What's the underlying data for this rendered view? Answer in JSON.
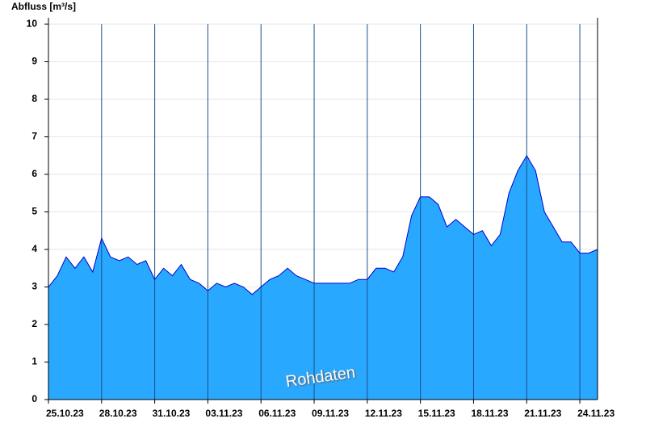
{
  "chart_data": {
    "type": "area",
    "y_label": "Abfluss [m³/s]",
    "annotation": "Rohdaten",
    "color": "#29a8ff",
    "line_color": "#0000cc",
    "grid": true,
    "x": [
      0,
      0.5,
      1,
      1.5,
      2,
      2.5,
      3,
      3.5,
      4,
      4.5,
      5,
      5.5,
      6,
      6.5,
      7,
      7.5,
      8,
      8.5,
      9,
      9.5,
      10,
      10.5,
      11,
      11.5,
      12,
      12.5,
      13,
      13.5,
      14,
      14.5,
      15,
      15.5,
      16,
      16.5,
      17,
      17.5,
      18,
      18.5,
      19,
      19.5,
      20,
      20.5,
      21,
      21.5,
      22,
      22.5,
      23,
      23.5,
      24,
      24.5,
      25,
      25.5,
      26,
      26.5,
      27,
      27.5,
      28,
      28.5,
      29,
      29.5,
      30,
      30.5,
      31
    ],
    "values": [
      3.0,
      3.3,
      3.8,
      3.5,
      3.8,
      3.4,
      4.3,
      3.8,
      3.7,
      3.8,
      3.6,
      3.7,
      3.2,
      3.5,
      3.3,
      3.6,
      3.2,
      3.1,
      2.9,
      3.1,
      3.0,
      3.1,
      3.0,
      2.8,
      3.0,
      3.2,
      3.3,
      3.5,
      3.3,
      3.2,
      3.1,
      3.1,
      3.1,
      3.1,
      3.1,
      3.2,
      3.2,
      3.5,
      3.5,
      3.4,
      3.8,
      4.9,
      5.4,
      5.4,
      5.2,
      4.6,
      4.8,
      4.6,
      4.4,
      4.5,
      4.1,
      4.4,
      5.5,
      6.1,
      6.5,
      6.1,
      5.0,
      4.6,
      4.2,
      4.2,
      3.9,
      3.9,
      4.0
    ],
    "xlim": [
      0,
      31
    ],
    "xticks": [
      {
        "value": 0,
        "label": "25.10.23"
      },
      {
        "value": 3,
        "label": "28.10.23"
      },
      {
        "value": 6,
        "label": "31.10.23"
      },
      {
        "value": 9,
        "label": "03.11.23"
      },
      {
        "value": 12,
        "label": "06.11.23"
      },
      {
        "value": 15,
        "label": "09.11.23"
      },
      {
        "value": 18,
        "label": "12.11.23"
      },
      {
        "value": 21,
        "label": "15.11.23"
      },
      {
        "value": 24,
        "label": "18.11.23"
      },
      {
        "value": 27,
        "label": "21.11.23"
      },
      {
        "value": 30,
        "label": "24.11.23"
      }
    ],
    "ylim": [
      0,
      10
    ],
    "yticks": [
      0,
      1,
      2,
      3,
      4,
      5,
      6,
      7,
      8,
      9,
      10
    ]
  }
}
